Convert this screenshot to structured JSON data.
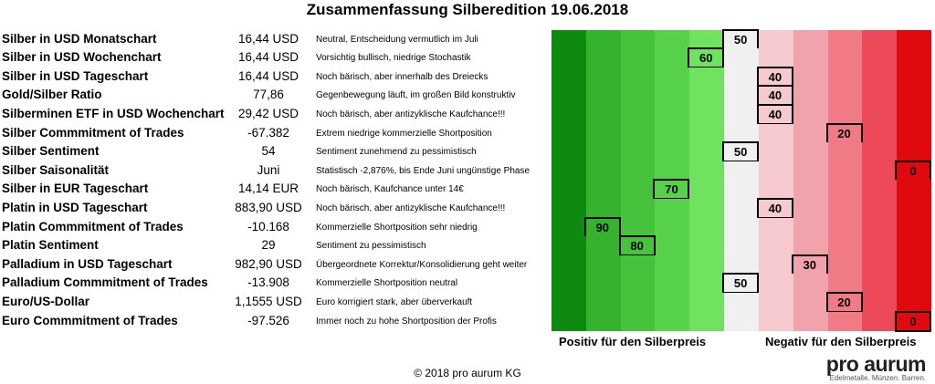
{
  "title": "Zusammenfassung Silberedition 19.06.2018",
  "chart_data": {
    "type": "table",
    "title": "Zusammenfassung Silberedition 19.06.2018",
    "scale": [
      0,
      100
    ],
    "rows": [
      {
        "label": "Silber in USD Monatschart",
        "value": "16,44 USD",
        "comment": "Neutral, Entscheidung vermutlich im Juli",
        "score": 50
      },
      {
        "label": "Silber in USD Wochenchart",
        "value": "16,44 USD",
        "comment": "Vorsichtig bullisch, niedrige Stochastik",
        "score": 60
      },
      {
        "label": "Silber in USD Tageschart",
        "value": "16,44 USD",
        "comment": "Noch bärisch, aber innerhalb des Dreiecks",
        "score": 40
      },
      {
        "label": "Gold/Silber Ratio",
        "value": "77,86",
        "comment": "Gegenbewegung läuft, im großen Bild konstruktiv",
        "score": 40
      },
      {
        "label": "Silberminen ETF in USD Wochenchart",
        "value": "29,42 USD",
        "comment": "Noch bärisch, aber antizyklische Kaufchance!!!",
        "score": 40
      },
      {
        "label": "Silber Commmitment of Trades",
        "value": "-67.382",
        "comment": "Extrem niedrige kommerzielle Shortposition",
        "score": 20
      },
      {
        "label": "Silber Sentiment",
        "value": "54",
        "comment": "Sentiment zunehmend zu pessimistisch",
        "score": 50
      },
      {
        "label": "Silber Saisonalität",
        "value": "Juni",
        "comment": "Statistisch -2,876%, bis Ende Juni ungünstige Phase",
        "score": 0
      },
      {
        "label": "Silber in EUR Tageschart",
        "value": "14,14 EUR",
        "comment": "Noch bärisch, Kaufchance unter 14€",
        "score": 70
      },
      {
        "label": "Platin in USD Tageschart",
        "value": "883,90 USD",
        "comment": "Noch bärisch, aber antizyklische Kaufchance!!!",
        "score": 40
      },
      {
        "label": "Platin Commmitment of Trades",
        "value": "-10.168",
        "comment": "Kommerzielle Shortposition sehr niedrig",
        "score": 90
      },
      {
        "label": "Platin Sentiment",
        "value": "29",
        "comment": "Sentiment zu pessimistisch",
        "score": 80
      },
      {
        "label": "Palladium in USD Tageschart",
        "value": "982,90 USD",
        "comment": "Übergeordnete Korrektur/Konsolidierung geht weiter",
        "score": 30
      },
      {
        "label": "Palladium Commmitment of Trades",
        "value": "-13.908",
        "comment": "Kommerzielle Shortposition neutral",
        "score": 50
      },
      {
        "label": "Euro/US-Dollar",
        "value": "1,1555 USD",
        "comment": "Euro korrigiert stark, aber überverkauft",
        "score": 20
      },
      {
        "label": "Euro Commmitment of Trades",
        "value": "-97.526",
        "comment": "Immer noch zu hohe Shortposition der Profis",
        "score": 0
      }
    ],
    "legend_positive": "Positiv für den Silberpreis",
    "legend_negative": "Negativ für den Silberpreis",
    "colors": [
      "#0e8a10",
      "#36b32e",
      "#46c23c",
      "#57d14a",
      "#6fe35f",
      "#f0f0f0",
      "#f5c9cd",
      "#f2a2aa",
      "#f07a86",
      "#ec4a58",
      "#e00a0e"
    ]
  },
  "footer": {
    "copyright": "© 2018 pro aurum KG"
  },
  "logo": {
    "name": "pro aurum",
    "tagline": "Edelmetalle. Münzen. Barren."
  }
}
